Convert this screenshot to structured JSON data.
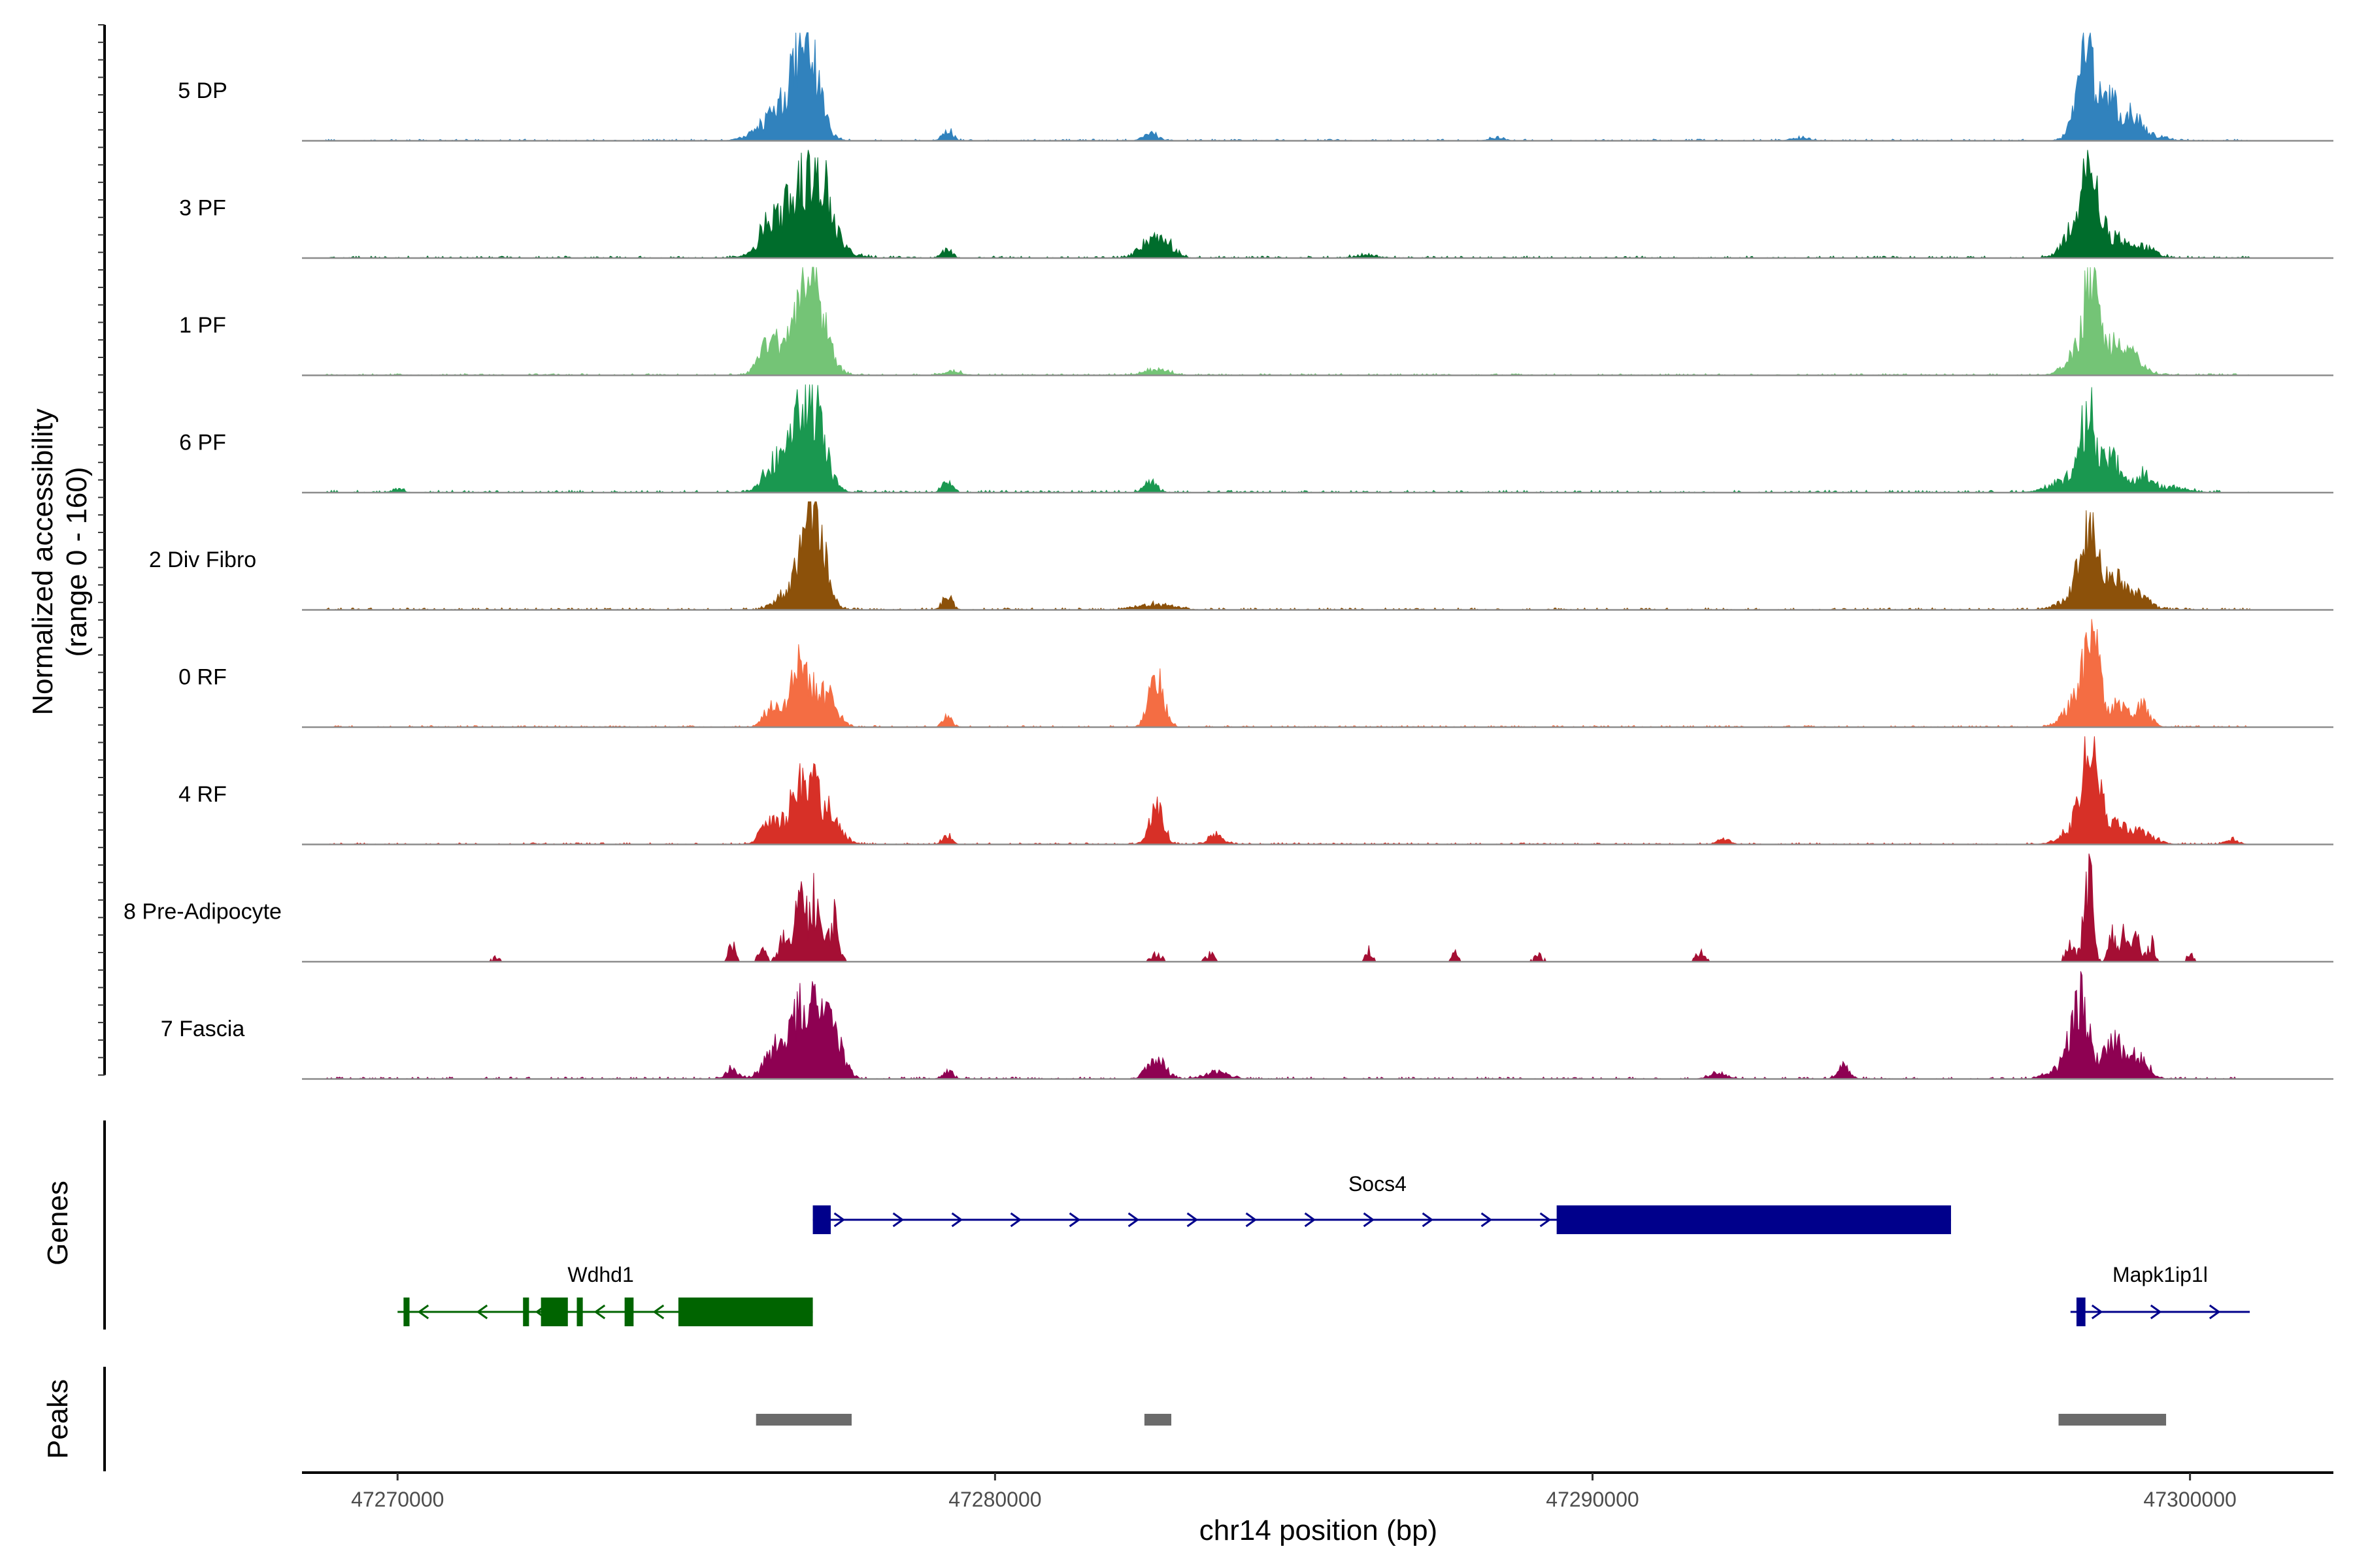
{
  "chart_data": {
    "type": "area",
    "y_axis_title": "Normalized accessibility",
    "y_axis_subtitle": "(range 0 - 160)",
    "y_range": [
      0,
      160
    ],
    "x_axis_title": "chr14 position (bp)",
    "x_range": [
      47268400,
      47302400
    ],
    "x_ticks": [
      47270000,
      47280000,
      47290000,
      47300000
    ],
    "x_tick_labels": [
      "47270000",
      "47280000",
      "47290000",
      "47300000"
    ],
    "grid": false,
    "tracks": [
      {
        "label": "5 DP",
        "color": "#3182bd",
        "peaks": [
          [
            47276600,
            48,
            280
          ],
          [
            47276850,
            120,
            200
          ],
          [
            47276150,
            16,
            250
          ],
          [
            47279200,
            18,
            80
          ],
          [
            47282600,
            10,
            120
          ],
          [
            47298250,
            125,
            150
          ],
          [
            47298650,
            42,
            120
          ],
          [
            47299000,
            24,
            150
          ],
          [
            47298850,
            18,
            400
          ],
          [
            47293450,
            4,
            150
          ],
          [
            47288400,
            5,
            120
          ]
        ],
        "noise": 2.5
      },
      {
        "label": "3 PF",
        "color": "#006d2c",
        "peaks": [
          [
            47276200,
            40,
            140
          ],
          [
            47276650,
            62,
            200
          ],
          [
            47277050,
            90,
            200
          ],
          [
            47276800,
            30,
            450
          ],
          [
            47279200,
            14,
            80
          ],
          [
            47282600,
            25,
            180
          ],
          [
            47282900,
            14,
            140
          ],
          [
            47298300,
            105,
            150
          ],
          [
            47298100,
            38,
            200
          ],
          [
            47298700,
            30,
            180
          ],
          [
            47299200,
            16,
            200
          ],
          [
            47286200,
            4,
            200
          ]
        ],
        "noise": 3
      },
      {
        "label": "1 PF",
        "color": "#74c476",
        "peaks": [
          [
            47276200,
            40,
            150
          ],
          [
            47276900,
            120,
            230
          ],
          [
            47276650,
            30,
            300
          ],
          [
            47279300,
            5,
            150
          ],
          [
            47282700,
            8,
            200
          ],
          [
            47298350,
            135,
            120
          ],
          [
            47298100,
            30,
            200
          ],
          [
            47298750,
            40,
            160
          ],
          [
            47299000,
            28,
            200
          ]
        ],
        "noise": 2.5
      },
      {
        "label": "6 PF",
        "color": "#1a9850",
        "peaks": [
          [
            47276300,
            30,
            180
          ],
          [
            47276900,
            128,
            220
          ],
          [
            47276600,
            28,
            250
          ],
          [
            47279200,
            16,
            80
          ],
          [
            47282600,
            18,
            100
          ],
          [
            47270000,
            5,
            100
          ],
          [
            47298300,
            102,
            130
          ],
          [
            47298000,
            20,
            300
          ],
          [
            47298700,
            45,
            150
          ],
          [
            47299200,
            24,
            120
          ],
          [
            47299600,
            8,
            300
          ]
        ],
        "noise": 3.5
      },
      {
        "label": "2 Div Fibro",
        "color": "#8c510a",
        "peaks": [
          [
            47276950,
            160,
            180
          ],
          [
            47276500,
            22,
            180
          ],
          [
            47279200,
            22,
            80
          ],
          [
            47282700,
            8,
            300
          ],
          [
            47298300,
            112,
            160
          ],
          [
            47298750,
            42,
            150
          ],
          [
            47299100,
            22,
            200
          ],
          [
            47297900,
            10,
            200
          ]
        ],
        "noise": 3
      },
      {
        "label": "0 RF",
        "color": "#f46d43",
        "peaks": [
          [
            47276250,
            28,
            120
          ],
          [
            47276750,
            88,
            180
          ],
          [
            47277200,
            42,
            160
          ],
          [
            47279200,
            18,
            70
          ],
          [
            47282700,
            72,
            120
          ],
          [
            47298350,
            118,
            130
          ],
          [
            47298100,
            36,
            200
          ],
          [
            47298800,
            34,
            160
          ],
          [
            47299200,
            28,
            130
          ]
        ],
        "noise": 2.5
      },
      {
        "label": "4 RF",
        "color": "#d73027",
        "peaks": [
          [
            47276200,
            28,
            140
          ],
          [
            47276800,
            92,
            230
          ],
          [
            47277200,
            32,
            200
          ],
          [
            47279200,
            12,
            80
          ],
          [
            47282700,
            50,
            120
          ],
          [
            47283700,
            14,
            120
          ],
          [
            47298350,
            138,
            140
          ],
          [
            47298150,
            28,
            250
          ],
          [
            47298800,
            24,
            150
          ],
          [
            47299200,
            18,
            200
          ],
          [
            47300700,
            8,
            100
          ],
          [
            47292200,
            8,
            100
          ]
        ],
        "noise": 2.5
      },
      {
        "label": "8 Pre-Adipocyte",
        "color": "#a50f34",
        "peaks": [
          [
            47276700,
            70,
            80
          ],
          [
            47277000,
            115,
            80
          ],
          [
            47277300,
            80,
            80
          ],
          [
            47276800,
            95,
            60
          ],
          [
            47276450,
            40,
            80
          ],
          [
            47275600,
            30,
            60
          ],
          [
            47276100,
            25,
            60
          ],
          [
            47271650,
            8,
            80
          ],
          [
            47282700,
            16,
            80
          ],
          [
            47283600,
            14,
            80
          ],
          [
            47286250,
            22,
            60
          ],
          [
            47287700,
            16,
            50
          ],
          [
            47289100,
            12,
            80
          ],
          [
            47291800,
            16,
            80
          ],
          [
            47298000,
            28,
            80
          ],
          [
            47298300,
            165,
            70
          ],
          [
            47298700,
            48,
            60
          ],
          [
            47298900,
            52,
            60
          ],
          [
            47299100,
            48,
            60
          ],
          [
            47299350,
            38,
            60
          ],
          [
            47300000,
            12,
            60
          ]
        ],
        "noise": 0,
        "sparse": true
      },
      {
        "label": "7 Fascia",
        "color": "#8e0152",
        "peaks": [
          [
            47276350,
            46,
            180
          ],
          [
            47276850,
            118,
            200
          ],
          [
            47277250,
            66,
            180
          ],
          [
            47275600,
            14,
            100
          ],
          [
            47279200,
            12,
            80
          ],
          [
            47282700,
            28,
            150
          ],
          [
            47283700,
            10,
            200
          ],
          [
            47294200,
            20,
            100
          ],
          [
            47292100,
            8,
            150
          ],
          [
            47298150,
            110,
            150
          ],
          [
            47298700,
            50,
            150
          ],
          [
            47299100,
            34,
            180
          ],
          [
            47297800,
            12,
            200
          ]
        ],
        "noise": 3
      }
    ],
    "genes_panel_title": "Genes",
    "genes": [
      {
        "name": "Socs4",
        "strand": "+",
        "color": "#00008b",
        "start": 47276950,
        "end": 47296000,
        "blocks": [
          [
            47276950,
            47277250,
            "thick"
          ],
          [
            47289400,
            47296000,
            "thick"
          ]
        ],
        "label_at": 47286400
      },
      {
        "name": "Wdhd1",
        "strand": "-",
        "color": "#006400",
        "start": 47270000,
        "end": 47276950,
        "blocks": [
          [
            47270100,
            47270200,
            "tick"
          ],
          [
            47272100,
            47272200,
            "tick"
          ],
          [
            47272400,
            47272850,
            "thick"
          ],
          [
            47273000,
            47273100,
            "tick"
          ],
          [
            47273800,
            47273950,
            "tick"
          ],
          [
            47274700,
            47276950,
            "thick"
          ]
        ],
        "label_at": 47273400
      },
      {
        "name": "Mapk1ip1l",
        "strand": "+",
        "color": "#00008b",
        "start": 47298000,
        "end": 47301000,
        "blocks": [
          [
            47298100,
            47298250,
            "tick"
          ]
        ],
        "label_at": 47299500
      }
    ],
    "peaks_panel_title": "Peaks",
    "peak_regions": [
      [
        47276000,
        47277600
      ],
      [
        47282500,
        47282950
      ],
      [
        47297800,
        47299600
      ]
    ],
    "peak_color": "#6b6b6b"
  }
}
